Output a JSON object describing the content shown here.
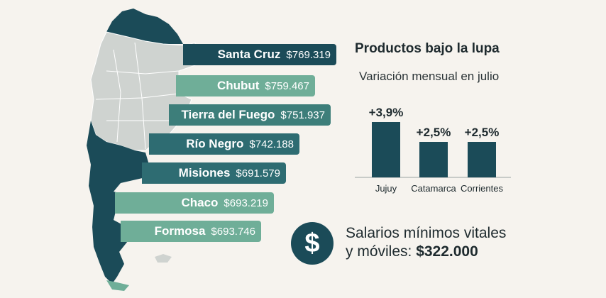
{
  "provinces": [
    {
      "name": "Santa Cruz",
      "value": "$769.319"
    },
    {
      "name": "Chubut",
      "value": "$759.467"
    },
    {
      "name": "Tierra del Fuego",
      "value": "$751.937"
    },
    {
      "name": "Río Negro",
      "value": "$742.188"
    },
    {
      "name": "Misiones",
      "value": "$691.579"
    },
    {
      "name": "Chaco",
      "value": "$693.219"
    },
    {
      "name": "Formosa",
      "value": "$693.746"
    }
  ],
  "chart_data": {
    "type": "bar",
    "title": "Productos bajo la lupa",
    "subtitle": "Variación mensual en julio",
    "categories": [
      "Jujuy",
      "Catamarca",
      "Corrientes"
    ],
    "values": [
      3.9,
      2.5,
      2.5
    ],
    "value_labels": [
      "+3,9%",
      "+2,5%",
      "+2,5%"
    ],
    "xlabel": "",
    "ylabel": "",
    "ylim": [
      0,
      6
    ]
  },
  "salary": {
    "icon": "dollar-icon",
    "line1": "Salarios mínimos vitales",
    "line2_prefix": "y móviles: ",
    "amount": "$322.000"
  },
  "colors": {
    "dark": "#1b4b58",
    "light": "#6fae98",
    "map_gray": "#cfd3d0"
  }
}
